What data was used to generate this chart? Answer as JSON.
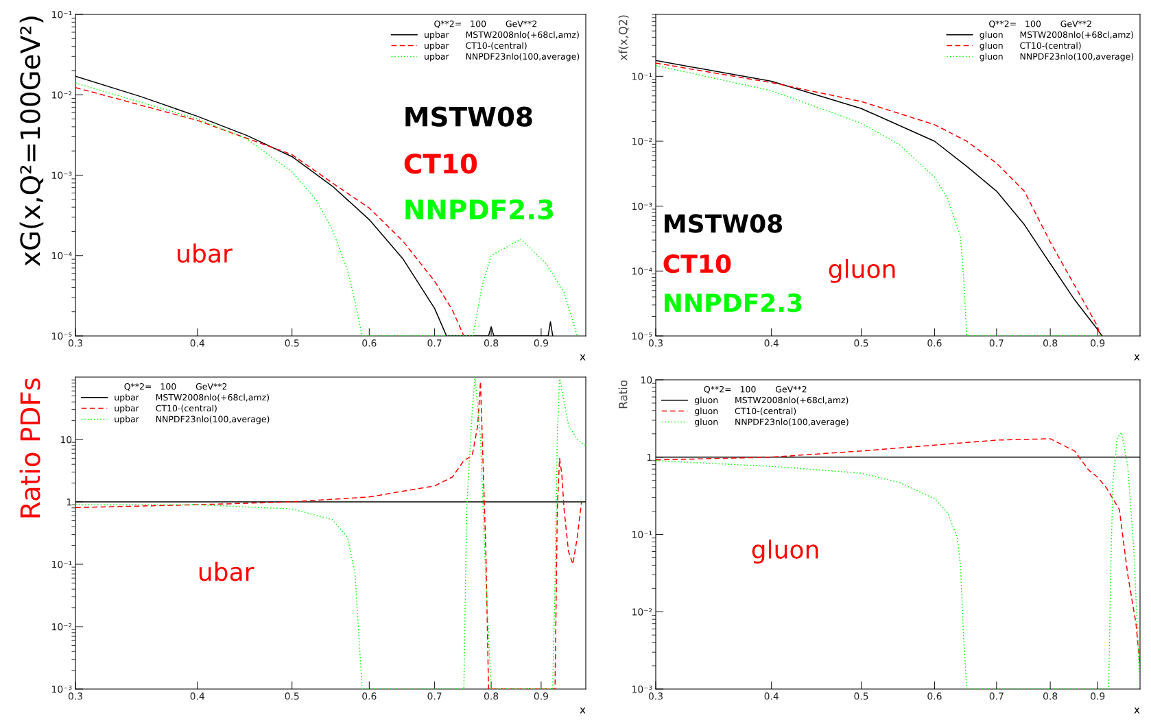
{
  "chart_data": [
    {
      "type": "line",
      "ylabel": "xG(x,Q²=100GeV²)",
      "xlabel": "x",
      "legend_title": "Q**2=   100       GeV**2",
      "legend": "top right",
      "log": "xy",
      "grid": false,
      "marker": "none",
      "xlim": [
        0.3,
        1.0
      ],
      "xticks": [
        0.3,
        0.4,
        0.5,
        0.6,
        0.7,
        0.8,
        0.9
      ],
      "ylim": [
        1e-05,
        0.1
      ],
      "yticks": [
        {
          "value": 1e-05,
          "label": "10⁻⁵"
        },
        {
          "value": 0.0001,
          "label": "10⁻⁴"
        },
        {
          "value": 0.001,
          "label": "10⁻³"
        },
        {
          "value": 0.01,
          "label": "10⁻²"
        },
        {
          "value": 0.1,
          "label": "10⁻¹"
        }
      ],
      "annotations": [
        "MSTW08",
        "CT10",
        "NNPDF2.3",
        "ubar"
      ],
      "series": [
        {
          "name": "upbar      MSTW2008nlo(+68cl,amz)",
          "color": "#000000",
          "line_style": "solid",
          "x": [
            0.3,
            0.35,
            0.4,
            0.45,
            0.5,
            0.55,
            0.6,
            0.65,
            0.7,
            0.72,
            0.795,
            0.8,
            0.805,
            0.915,
            0.92,
            0.925
          ],
          "values": [
            0.017,
            0.0095,
            0.0054,
            0.0031,
            0.0017,
            0.00073,
            0.00028,
            9e-05,
            2.2e-05,
            1e-05,
            1e-05,
            1.3e-05,
            1e-05,
            1e-05,
            1.5e-05,
            1e-05
          ]
        },
        {
          "name": "upbar      CT10-(central)",
          "color": "#ff0000",
          "line_style": "dashed",
          "x": [
            0.3,
            0.4,
            0.5,
            0.55,
            0.6,
            0.65,
            0.7,
            0.73,
            0.75
          ],
          "values": [
            0.0123,
            0.0048,
            0.0018,
            0.0008,
            0.00039,
            0.00015,
            4.8e-05,
            2.1e-05,
            1e-05
          ]
        },
        {
          "name": "upbar      NNPDF23nlo(100,average)",
          "color": "#00ff00",
          "line_style": "dotted",
          "x": [
            0.3,
            0.4,
            0.45,
            0.5,
            0.53,
            0.55,
            0.57,
            0.58,
            0.59,
            0.766,
            0.784,
            0.8,
            0.858,
            0.91,
            0.95,
            0.98
          ],
          "values": [
            0.014,
            0.005,
            0.0028,
            0.0011,
            0.00048,
            0.00021,
            6.6e-05,
            2.7e-05,
            1e-05,
            1e-05,
            4.4e-05,
            0.0001,
            0.00016,
            8e-05,
            3.5e-05,
            1e-05
          ]
        }
      ]
    },
    {
      "type": "line",
      "ylabel": "xf(x,Q2)",
      "xlabel": "x",
      "legend_title": "Q**2=   100       GeV**2",
      "legend": "top right",
      "log": "xy",
      "grid": false,
      "marker": "none",
      "xlim": [
        0.3,
        1.0
      ],
      "xticks": [
        0.3,
        0.4,
        0.5,
        0.6,
        0.7,
        0.8,
        0.9
      ],
      "ylim": [
        1e-05,
        0.9
      ],
      "yticks": [
        {
          "value": 1e-05,
          "label": "10⁻⁵"
        },
        {
          "value": 0.0001,
          "label": "10⁻⁴"
        },
        {
          "value": 0.001,
          "label": "10⁻³"
        },
        {
          "value": 0.01,
          "label": "10⁻²"
        },
        {
          "value": 0.1,
          "label": "10⁻¹"
        }
      ],
      "annotations": [
        "MSTW08",
        "CT10",
        "NNPDF2.3",
        "gluon"
      ],
      "series": [
        {
          "name": "gluon      MSTW2008nlo(+68cl,amz)",
          "color": "#000000",
          "line_style": "solid",
          "x": [
            0.3,
            0.4,
            0.5,
            0.6,
            0.65,
            0.7,
            0.75,
            0.8,
            0.85,
            0.9,
            0.91
          ],
          "values": [
            0.175,
            0.084,
            0.032,
            0.01,
            0.0041,
            0.0017,
            0.00052,
            0.00013,
            3.6e-05,
            1.25e-05,
            1e-05
          ]
        },
        {
          "name": "gluon      CT10-(central)",
          "color": "#ff0000",
          "line_style": "dashed",
          "x": [
            0.3,
            0.4,
            0.5,
            0.6,
            0.65,
            0.7,
            0.75,
            0.8,
            0.85,
            0.9,
            0.905
          ],
          "values": [
            0.16,
            0.08,
            0.041,
            0.018,
            0.01,
            0.0046,
            0.0017,
            0.00028,
            6e-05,
            1.4e-05,
            1e-05
          ]
        },
        {
          "name": "gluon      NNPDF23nlo(100,average)",
          "color": "#00ff00",
          "line_style": "dotted",
          "x": [
            0.3,
            0.4,
            0.5,
            0.55,
            0.6,
            0.62,
            0.64,
            0.645,
            0.65,
            0.91
          ],
          "values": [
            0.147,
            0.06,
            0.019,
            0.0088,
            0.0028,
            0.0013,
            0.00034,
            7.7e-05,
            1e-05,
            1e-05
          ]
        }
      ]
    },
    {
      "type": "line",
      "ylabel": "Ratio PDFs",
      "xlabel": "x",
      "legend_title": "Q**2=   100       GeV**2",
      "legend": "top left",
      "log": "xy",
      "grid": false,
      "marker": "none",
      "xlim": [
        0.3,
        1.0
      ],
      "xticks": [
        0.3,
        0.4,
        0.5,
        0.6,
        0.7,
        0.8,
        0.9
      ],
      "ylim": [
        0.001,
        100
      ],
      "yticks": [
        {
          "value": 0.001,
          "label": "10⁻³"
        },
        {
          "value": 0.01,
          "label": "10⁻²"
        },
        {
          "value": 0.1,
          "label": "10⁻¹"
        },
        1,
        10
      ],
      "annotations": [
        "ubar"
      ],
      "series": [
        {
          "name": "upbar      MSTW2008nlo(+68cl,amz)",
          "color": "#000000",
          "line_style": "solid",
          "x": [
            0.3,
            1.0
          ],
          "values": [
            1,
            1
          ]
        },
        {
          "name": "upbar      CT10-(central)",
          "color": "#ff0000",
          "line_style": "dashed",
          "x": [
            0.3,
            0.4,
            0.5,
            0.6,
            0.7,
            0.73,
            0.75,
            0.765,
            0.775,
            0.78,
            0.79,
            0.795,
            0.93,
            0.935,
            0.94,
            0.945,
            0.95,
            0.96,
            0.97,
            0.98,
            0.99
          ],
          "values": [
            0.81,
            0.9,
            1,
            1.2,
            1.8,
            2.5,
            4.6,
            5.5,
            17,
            85,
            0.16,
            0.001,
            0.001,
            0.77,
            5,
            2.8,
            0.77,
            0.16,
            0.1,
            0.27,
            1
          ]
        },
        {
          "name": "upbar      NNPDF23nlo(100,average)",
          "color": "#00ff00",
          "line_style": "dotted",
          "x": [
            0.3,
            0.4,
            0.5,
            0.55,
            0.57,
            0.58,
            0.585,
            0.59,
            0.75,
            0.755,
            0.765,
            0.77,
            0.78,
            0.79,
            0.8,
            0.925,
            0.93,
            0.935,
            0.94,
            0.96,
            0.98,
            1.0
          ],
          "values": [
            0.9,
            0.9,
            0.77,
            0.52,
            0.27,
            0.073,
            0.0089,
            0.001,
            0.001,
            0.77,
            29,
            100,
            10.5,
            0.056,
            0.001,
            0.001,
            0.056,
            10,
            100,
            17,
            10,
            8
          ]
        }
      ]
    },
    {
      "type": "line",
      "ylabel": "Ratio",
      "xlabel": "x",
      "legend_title": "Q**2=   100       GeV**2",
      "legend": "top left",
      "log": "xy",
      "grid": false,
      "marker": "none",
      "xlim": [
        0.3,
        1.0
      ],
      "xticks": [
        0.3,
        0.4,
        0.5,
        0.6,
        0.7,
        0.8,
        0.9
      ],
      "ylim": [
        0.001,
        10
      ],
      "yticks": [
        {
          "value": 0.001,
          "label": "10⁻³"
        },
        {
          "value": 0.01,
          "label": "10⁻²"
        },
        {
          "value": 0.1,
          "label": "10⁻¹"
        },
        1,
        10
      ],
      "annotations": [
        "gluon"
      ],
      "series": [
        {
          "name": "gluon      MSTW2008nlo(+68cl,amz)",
          "color": "#000000",
          "line_style": "solid",
          "x": [
            0.3,
            1.0
          ],
          "values": [
            1,
            1
          ]
        },
        {
          "name": "gluon      CT10-(central)",
          "color": "#ff0000",
          "line_style": "dashed",
          "x": [
            0.3,
            0.4,
            0.5,
            0.6,
            0.7,
            0.8,
            0.85,
            0.88,
            0.9,
            0.92,
            0.95,
            0.97,
            0.99,
            1.0
          ],
          "values": [
            0.92,
            1,
            1.2,
            1.43,
            1.66,
            1.73,
            1.2,
            0.68,
            0.55,
            0.4,
            0.21,
            0.03,
            0.007,
            0.002
          ]
        },
        {
          "name": "gluon      NNPDF23nlo(100,average)",
          "color": "#00ff00",
          "line_style": "dotted",
          "x": [
            0.3,
            0.4,
            0.5,
            0.55,
            0.6,
            0.62,
            0.635,
            0.64,
            0.645,
            0.65,
            0.925,
            0.93,
            0.935,
            0.945,
            0.955,
            0.97,
            0.985,
            1.0
          ],
          "values": [
            0.9,
            0.76,
            0.62,
            0.47,
            0.29,
            0.19,
            0.09,
            0.039,
            0.0046,
            0.001,
            0.001,
            0.039,
            0.5,
            1.77,
            2.1,
            0.76,
            0.06,
            0.001
          ]
        }
      ]
    }
  ]
}
